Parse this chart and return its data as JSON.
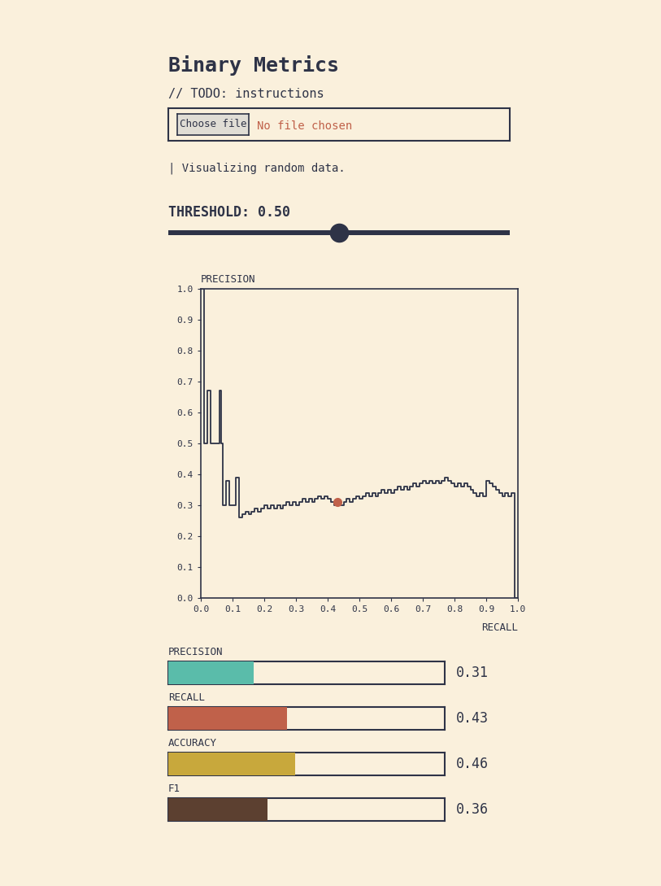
{
  "background_color": "#FAF0DC",
  "title": "Binary Metrics",
  "subtitle": "// TODO: instructions",
  "file_label": "No file chosen",
  "file_button": "Choose file",
  "status_text": "| Visualizing random data.",
  "threshold_label": "THRESHOLD: 0.50",
  "dark_color": "#2E3347",
  "dot_color": "#C0614A",
  "file_label_color": "#C0614A",
  "dot_recall": 0.43,
  "dot_precision": 0.31,
  "pr_curve_recall": [
    0.0,
    0.01,
    0.02,
    0.03,
    0.04,
    0.05,
    0.06,
    0.065,
    0.07,
    0.08,
    0.09,
    0.1,
    0.11,
    0.12,
    0.13,
    0.14,
    0.15,
    0.16,
    0.17,
    0.18,
    0.19,
    0.2,
    0.21,
    0.22,
    0.23,
    0.24,
    0.25,
    0.26,
    0.27,
    0.28,
    0.29,
    0.3,
    0.31,
    0.32,
    0.33,
    0.34,
    0.35,
    0.36,
    0.37,
    0.38,
    0.39,
    0.4,
    0.41,
    0.42,
    0.43,
    0.44,
    0.45,
    0.46,
    0.47,
    0.48,
    0.49,
    0.5,
    0.51,
    0.52,
    0.53,
    0.54,
    0.55,
    0.56,
    0.57,
    0.58,
    0.59,
    0.6,
    0.61,
    0.62,
    0.63,
    0.64,
    0.65,
    0.66,
    0.67,
    0.68,
    0.69,
    0.7,
    0.71,
    0.72,
    0.73,
    0.74,
    0.75,
    0.76,
    0.77,
    0.78,
    0.79,
    0.8,
    0.81,
    0.82,
    0.83,
    0.84,
    0.85,
    0.86,
    0.87,
    0.88,
    0.89,
    0.9,
    0.91,
    0.92,
    0.93,
    0.94,
    0.95,
    0.96,
    0.97,
    0.98,
    0.99,
    1.0
  ],
  "pr_curve_precision": [
    1.0,
    0.5,
    0.67,
    0.5,
    0.5,
    0.5,
    0.67,
    0.5,
    0.3,
    0.38,
    0.3,
    0.3,
    0.39,
    0.26,
    0.27,
    0.28,
    0.27,
    0.28,
    0.29,
    0.28,
    0.29,
    0.3,
    0.29,
    0.3,
    0.29,
    0.3,
    0.29,
    0.3,
    0.31,
    0.3,
    0.31,
    0.3,
    0.31,
    0.32,
    0.31,
    0.32,
    0.31,
    0.32,
    0.33,
    0.32,
    0.33,
    0.32,
    0.31,
    0.3,
    0.31,
    0.3,
    0.31,
    0.32,
    0.31,
    0.32,
    0.33,
    0.32,
    0.33,
    0.34,
    0.33,
    0.34,
    0.33,
    0.34,
    0.35,
    0.34,
    0.35,
    0.34,
    0.35,
    0.36,
    0.35,
    0.36,
    0.35,
    0.36,
    0.37,
    0.36,
    0.37,
    0.38,
    0.37,
    0.38,
    0.37,
    0.38,
    0.37,
    0.38,
    0.39,
    0.38,
    0.37,
    0.36,
    0.37,
    0.36,
    0.37,
    0.36,
    0.35,
    0.34,
    0.33,
    0.34,
    0.33,
    0.38,
    0.37,
    0.36,
    0.35,
    0.34,
    0.33,
    0.34,
    0.33,
    0.34,
    0.0,
    0.0
  ],
  "metrics": [
    {
      "label": "PRECISION",
      "value": 0.31,
      "color": "#5ABCAA"
    },
    {
      "label": "RECALL",
      "value": 0.43,
      "color": "#C0614A"
    },
    {
      "label": "ACCURACY",
      "value": 0.46,
      "color": "#C8A83C"
    },
    {
      "label": "F1",
      "value": 0.36,
      "color": "#5C4030"
    }
  ]
}
